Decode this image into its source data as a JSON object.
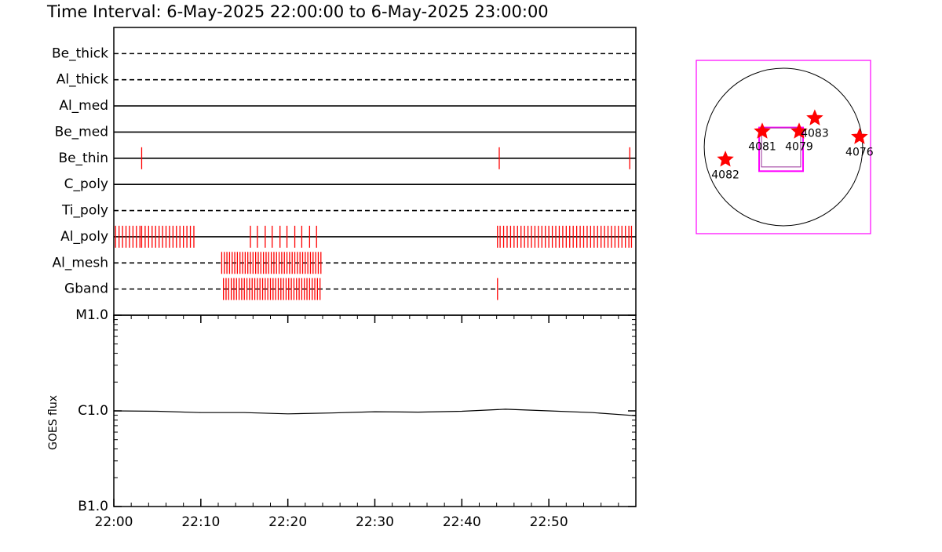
{
  "title": "Time Interval:  6-May-2025 22:00:00 to  6-May-2025 23:00:00",
  "chart_data": [
    {
      "type": "timeline",
      "color": "#ff0000",
      "xlim": [
        0,
        60
      ],
      "xticks": [
        {
          "value": 0,
          "label": "22:00"
        },
        {
          "value": 10,
          "label": "22:10"
        },
        {
          "value": 20,
          "label": "22:20"
        },
        {
          "value": 30,
          "label": "22:30"
        },
        {
          "value": 40,
          "label": "22:40"
        },
        {
          "value": 50,
          "label": "22:50"
        }
      ],
      "rows": [
        {
          "name": "Be_thick",
          "style": "dashed",
          "times": []
        },
        {
          "name": "Al_thick",
          "style": "dashed",
          "times": []
        },
        {
          "name": "Al_med",
          "style": "solid",
          "times": []
        },
        {
          "name": "Be_med",
          "style": "solid",
          "times": []
        },
        {
          "name": "Be_thin",
          "style": "solid",
          "times": [
            3.2,
            44.3,
            59.3
          ]
        },
        {
          "name": "C_poly",
          "style": "solid",
          "times": []
        },
        {
          "name": "Ti_poly",
          "style": "dashed",
          "times": []
        },
        {
          "name": "Al_poly",
          "style": "solid",
          "times": [
            0.2,
            0.6,
            1.0,
            1.4,
            1.8,
            2.2,
            2.6,
            3.0,
            3.2,
            3.6,
            4.0,
            4.4,
            4.8,
            5.2,
            5.6,
            6.0,
            6.4,
            6.8,
            7.2,
            7.6,
            8.0,
            8.4,
            8.8,
            9.2,
            15.7,
            16.5,
            17.4,
            18.2,
            19.1,
            19.9,
            20.8,
            21.6,
            22.5,
            23.3,
            44.1,
            44.4,
            44.8,
            45.2,
            45.6,
            46.0,
            46.4,
            46.8,
            47.2,
            47.6,
            48.0,
            48.4,
            48.8,
            49.2,
            49.6,
            50.0,
            50.4,
            50.8,
            51.2,
            51.6,
            52.0,
            52.4,
            52.8,
            53.2,
            53.6,
            54.0,
            54.4,
            54.8,
            55.2,
            55.6,
            56.0,
            56.4,
            56.8,
            57.2,
            57.6,
            58.0,
            58.4,
            58.8,
            59.2,
            59.5
          ]
        },
        {
          "name": "Al_mesh",
          "style": "dashed",
          "times": [
            12.4,
            12.7,
            13.0,
            13.3,
            13.6,
            13.9,
            14.2,
            14.5,
            14.8,
            15.1,
            15.4,
            15.7,
            16.0,
            16.3,
            16.6,
            16.9,
            17.2,
            17.5,
            17.8,
            18.1,
            18.4,
            18.7,
            19.0,
            19.3,
            19.6,
            19.9,
            20.2,
            20.5,
            20.8,
            21.1,
            21.4,
            21.7,
            22.0,
            22.3,
            22.6,
            22.9,
            23.2,
            23.5,
            23.8
          ]
        },
        {
          "name": "Gband",
          "style": "dashed",
          "times": [
            12.6,
            12.9,
            13.2,
            13.5,
            13.8,
            14.1,
            14.4,
            14.7,
            15.0,
            15.3,
            15.6,
            15.9,
            16.2,
            16.5,
            16.8,
            17.1,
            17.4,
            17.7,
            18.0,
            18.3,
            18.6,
            18.9,
            19.2,
            19.5,
            19.8,
            20.1,
            20.4,
            20.7,
            21.0,
            21.3,
            21.6,
            21.9,
            22.2,
            22.5,
            22.8,
            23.1,
            23.4,
            23.7,
            44.1
          ]
        }
      ]
    },
    {
      "type": "line",
      "ylabel": "GOES flux",
      "log": true,
      "color": "#000000",
      "xlim": [
        0,
        60
      ],
      "xticks": [
        {
          "value": 0,
          "label": "22:00"
        },
        {
          "value": 10,
          "label": "22:10"
        },
        {
          "value": 20,
          "label": "22:20"
        },
        {
          "value": 30,
          "label": "22:30"
        },
        {
          "value": 40,
          "label": "22:40"
        },
        {
          "value": 50,
          "label": "22:50"
        }
      ],
      "ylim": [
        1e-07,
        1e-05
      ],
      "yticks": [
        {
          "value": 1e-07,
          "label": "B1.0"
        },
        {
          "value": 1e-06,
          "label": "C1.0"
        },
        {
          "value": 1e-05,
          "label": "M1.0"
        }
      ],
      "x": [
        0,
        5,
        10,
        15,
        20,
        25,
        30,
        35,
        40,
        45,
        50,
        55,
        60
      ],
      "values": [
        1e-06,
        9.9e-07,
        9.6e-07,
        9.6e-07,
        9.3e-07,
        9.5e-07,
        9.8e-07,
        9.7e-07,
        9.9e-07,
        1.04e-06,
        1e-06,
        9.6e-07,
        8.9e-07
      ]
    },
    {
      "type": "map",
      "xlim": [
        -1045,
        1045
      ],
      "ylim": [
        -1045,
        1045
      ],
      "sun_radius": 950,
      "marker_color": "#ff0000",
      "fov_color": "#ff00ff",
      "fov": [
        {
          "xc": -28,
          "yc": -28,
          "w": 527,
          "h": 527
        },
        {
          "xc": -28,
          "yc": -5,
          "w": 470,
          "h": 470
        }
      ],
      "points": [
        {
          "label": "4082",
          "x": -696,
          "y": -150
        },
        {
          "label": "4081",
          "x": -254,
          "y": 188
        },
        {
          "label": "4079",
          "x": 188,
          "y": 188
        },
        {
          "label": "4083",
          "x": 376,
          "y": 348
        },
        {
          "label": "4076",
          "x": 912,
          "y": 122
        }
      ]
    }
  ]
}
